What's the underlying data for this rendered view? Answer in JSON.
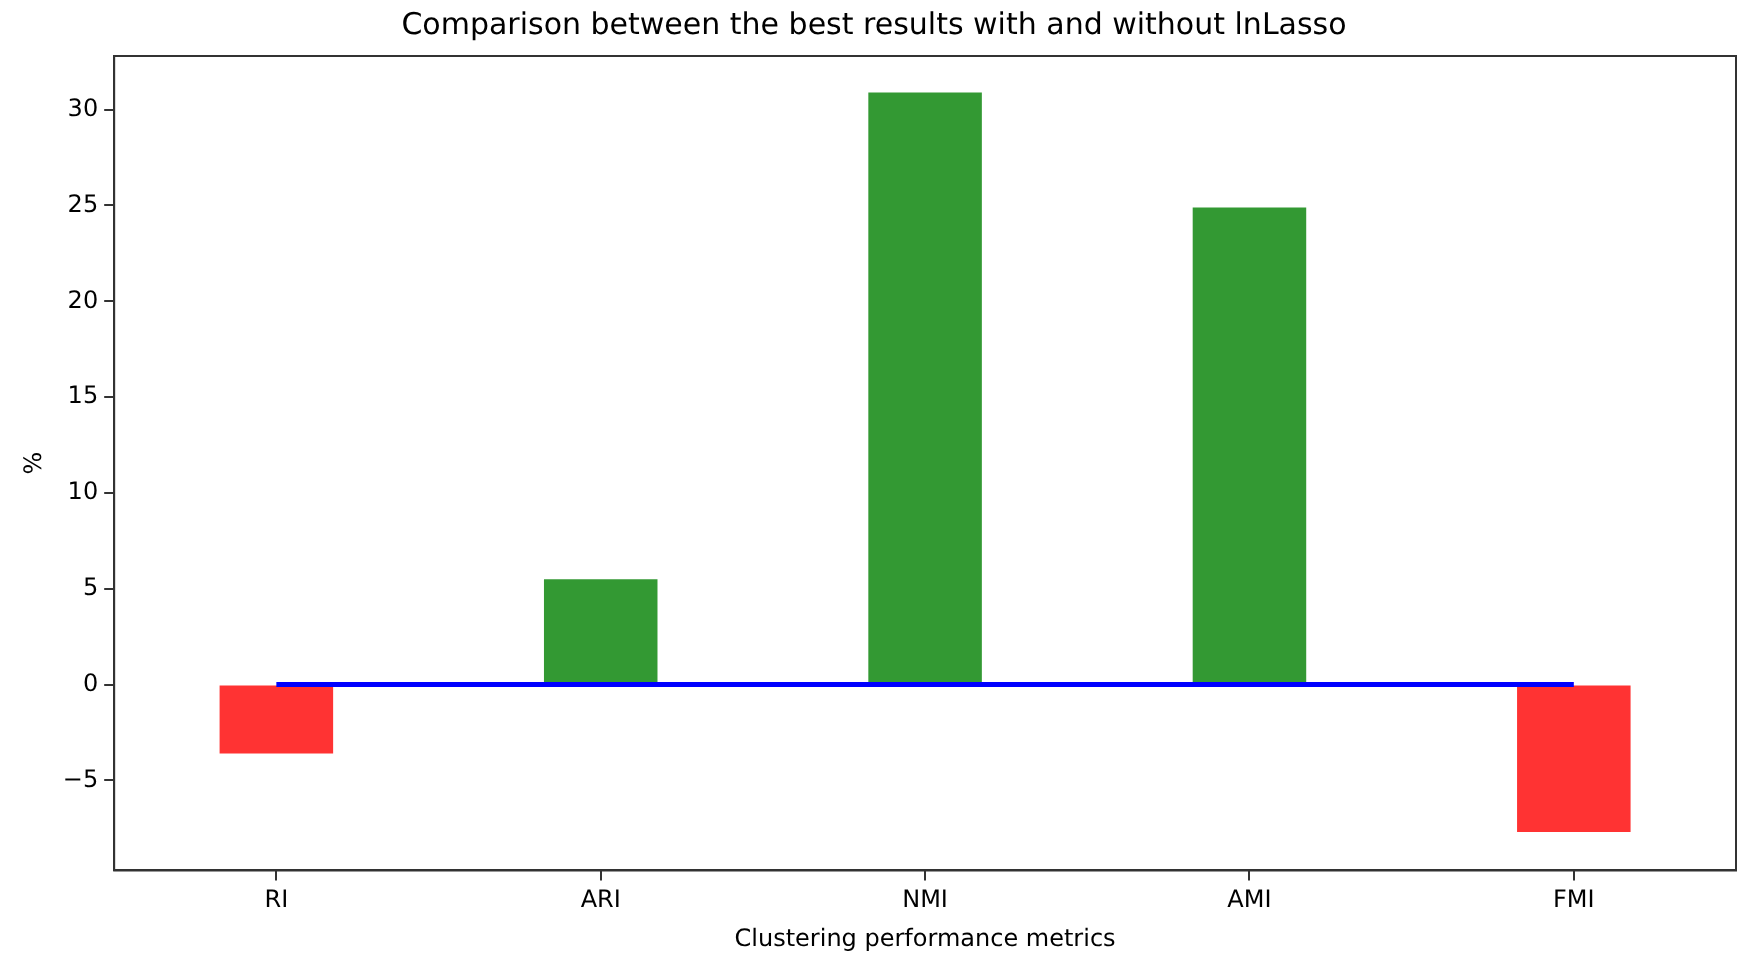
{
  "chart_data": {
    "type": "bar",
    "title": "Comparison between the best results with and without lnLasso",
    "xlabel": "Clustering performance metrics",
    "ylabel": "%",
    "categories": [
      "RI",
      "ARI",
      "NMI",
      "AMI",
      "FMI"
    ],
    "series": [
      {
        "colors": [
          "#ff3333",
          "#339933",
          "#339933",
          "#339933",
          "#ff3333"
        ],
        "values": [
          -3.6,
          5.5,
          30.9,
          24.9,
          -7.7
        ]
      },
      {
        "type": "line",
        "color": "#0000ff",
        "values": [
          0,
          0,
          0,
          0,
          0
        ]
      }
    ],
    "ylim": [
      -9.7,
      32.8
    ],
    "yticks": [
      -5,
      0,
      5,
      10,
      15,
      20,
      25,
      30
    ],
    "grid": false,
    "legend": false
  }
}
